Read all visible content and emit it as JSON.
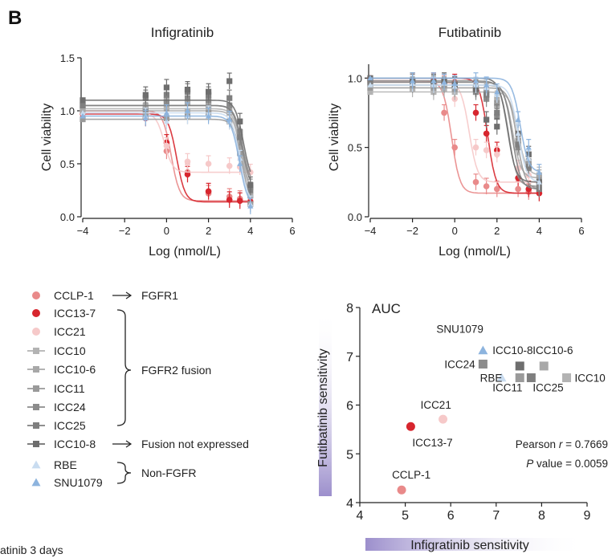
{
  "panel_label": "B",
  "footer_text": "atinib 3 days",
  "colors": {
    "CCLP-1": "#e98a8a",
    "ICC13-7": "#d7262e",
    "ICC21": "#f6c9c9",
    "ICC10": "#b3b3b3",
    "ICC10-6": "#a8a8a8",
    "ICC11": "#9a9a9a",
    "ICC24": "#8c8c8c",
    "ICC25": "#7f7f7f",
    "ICC10-8": "#6e6e6e",
    "RBE": "#c9dcf0",
    "SNU1079": "#8db4de",
    "wedge": "#9c8fcc"
  },
  "legend": {
    "items": [
      {
        "name": "CCLP-1",
        "marker": "circle"
      },
      {
        "name": "ICC13-7",
        "marker": "circle"
      },
      {
        "name": "ICC21",
        "marker": "circle"
      },
      {
        "name": "ICC10",
        "marker": "square-line"
      },
      {
        "name": "ICC10-6",
        "marker": "square-line"
      },
      {
        "name": "ICC11",
        "marker": "square-line"
      },
      {
        "name": "ICC24",
        "marker": "square-line"
      },
      {
        "name": "ICC25",
        "marker": "square-line"
      },
      {
        "name": "ICC10-8",
        "marker": "square-line"
      },
      {
        "name": "RBE",
        "marker": "triangle"
      },
      {
        "name": "SNU1079",
        "marker": "triangle"
      }
    ],
    "groups": {
      "fgfr1": "FGFR1",
      "fusion": "FGFR2 fusion",
      "not_expressed": "Fusion not expressed",
      "non_fgfr": "Non-FGFR"
    }
  },
  "chart_data": [
    {
      "type": "line",
      "title": "Infigratinib",
      "xlabel": "Log (nmol/L)",
      "ylabel": "Cell viability",
      "xlim": [
        -4,
        6
      ],
      "ylim": [
        0,
        1.5
      ],
      "xticks": [
        "−4",
        "−2",
        "0",
        "2",
        "4",
        "6"
      ],
      "yticks": [
        "0.0",
        "0.5",
        "1.0",
        "1.5"
      ],
      "x": [
        -4,
        -1,
        0,
        1,
        2,
        3,
        3.5,
        4
      ],
      "series": [
        {
          "name": "CCLP-1",
          "values": [
            1.0,
            0.97,
            0.62,
            0.42,
            0.22,
            0.19,
            0.17,
            0.15
          ]
        },
        {
          "name": "ICC13-7",
          "values": [
            0.97,
            0.93,
            0.7,
            0.4,
            0.24,
            0.16,
            0.15,
            0.14
          ]
        },
        {
          "name": "ICC21",
          "values": [
            0.98,
            0.95,
            0.67,
            0.52,
            0.5,
            0.48,
            0.47,
            0.42
          ]
        },
        {
          "name": "ICC10",
          "values": [
            1.02,
            1.05,
            1.02,
            1.0,
            1.0,
            0.98,
            0.7,
            0.2
          ]
        },
        {
          "name": "ICC10-6",
          "values": [
            1.0,
            1.02,
            1.1,
            1.08,
            1.05,
            1.0,
            0.65,
            0.2
          ]
        },
        {
          "name": "ICC11",
          "values": [
            0.92,
            0.95,
            0.93,
            0.95,
            0.98,
            0.9,
            0.6,
            0.12
          ]
        },
        {
          "name": "ICC24",
          "values": [
            1.05,
            1.0,
            1.08,
            1.12,
            1.1,
            1.05,
            0.8,
            0.28
          ]
        },
        {
          "name": "ICC25",
          "values": [
            1.05,
            1.12,
            1.15,
            1.18,
            1.15,
            1.12,
            0.75,
            0.25
          ]
        },
        {
          "name": "ICC10-8",
          "values": [
            1.1,
            1.15,
            1.22,
            1.2,
            1.18,
            1.28,
            0.9,
            0.3
          ]
        },
        {
          "name": "RBE",
          "values": [
            0.98,
            0.95,
            0.9,
            0.95,
            0.97,
            0.9,
            0.55,
            0.12
          ]
        },
        {
          "name": "SNU1079",
          "values": [
            0.95,
            0.93,
            0.98,
            1.0,
            0.95,
            0.92,
            0.5,
            0.1
          ]
        }
      ]
    },
    {
      "type": "line",
      "title": "Futibatinib",
      "xlabel": "Log (nmol/L)",
      "ylabel": "Cell viability",
      "xlim": [
        -4,
        6
      ],
      "ylim": [
        0,
        1.1
      ],
      "xticks": [
        "−4",
        "−2",
        "0",
        "2",
        "4",
        "6"
      ],
      "yticks": [
        "0.0",
        "0.5",
        "1.0"
      ],
      "x": [
        -4,
        -2,
        -1,
        -0.5,
        0,
        1,
        1.5,
        2,
        3,
        3.5,
        4
      ],
      "series": [
        {
          "name": "CCLP-1",
          "values": [
            0.98,
            0.97,
            0.95,
            0.75,
            0.5,
            0.25,
            0.22,
            0.2,
            0.2,
            0.18,
            0.17
          ]
        },
        {
          "name": "ICC13-7",
          "values": [
            1.0,
            0.98,
            0.98,
            0.96,
            0.97,
            0.75,
            0.6,
            0.48,
            0.28,
            0.2,
            0.17
          ]
        },
        {
          "name": "ICC21",
          "values": [
            0.97,
            0.98,
            0.95,
            0.96,
            0.85,
            0.5,
            0.48,
            0.45,
            0.35,
            0.3,
            0.25
          ]
        },
        {
          "name": "ICC10",
          "values": [
            0.9,
            0.92,
            0.9,
            0.92,
            0.9,
            0.9,
            0.88,
            0.85,
            0.6,
            0.45,
            0.3
          ]
        },
        {
          "name": "ICC10-6",
          "values": [
            0.95,
            0.95,
            0.97,
            0.95,
            0.95,
            0.92,
            0.88,
            0.8,
            0.55,
            0.4,
            0.28
          ]
        },
        {
          "name": "ICC11",
          "values": [
            0.93,
            0.95,
            0.93,
            0.95,
            0.92,
            0.92,
            0.9,
            0.82,
            0.55,
            0.38,
            0.2
          ]
        },
        {
          "name": "ICC24",
          "values": [
            0.98,
            0.97,
            0.95,
            0.97,
            0.95,
            0.9,
            0.85,
            0.72,
            0.5,
            0.35,
            0.22
          ]
        },
        {
          "name": "ICC25",
          "values": [
            0.97,
            0.98,
            0.96,
            0.97,
            0.95,
            0.93,
            0.88,
            0.75,
            0.52,
            0.36,
            0.2
          ]
        },
        {
          "name": "ICC10-8",
          "values": [
            1.0,
            0.98,
            0.97,
            0.98,
            0.95,
            0.92,
            0.7,
            0.65,
            0.6,
            0.45,
            0.25
          ]
        },
        {
          "name": "RBE",
          "values": [
            0.95,
            0.96,
            0.95,
            0.97,
            0.94,
            0.95,
            0.93,
            0.88,
            0.6,
            0.42,
            0.25
          ]
        },
        {
          "name": "SNU1079",
          "values": [
            1.0,
            0.98,
            0.98,
            0.97,
            0.96,
            0.98,
            0.95,
            0.9,
            0.7,
            0.5,
            0.32
          ]
        }
      ]
    },
    {
      "type": "scatter",
      "title": "AUC",
      "xlabel": "Infigratinib sensitivity",
      "ylabel": "Futibatinib sensitivity",
      "xlim": [
        4,
        9
      ],
      "ylim": [
        4,
        8
      ],
      "xticks": [
        "4",
        "5",
        "6",
        "7",
        "8",
        "9"
      ],
      "yticks": [
        "4",
        "5",
        "6",
        "7",
        "8"
      ],
      "points": [
        {
          "name": "CCLP-1",
          "x": 4.92,
          "y": 4.26
        },
        {
          "name": "ICC13-7",
          "x": 5.12,
          "y": 5.56
        },
        {
          "name": "ICC21",
          "x": 5.83,
          "y": 5.71
        },
        {
          "name": "SNU1079",
          "x": 6.71,
          "y": 7.12
        },
        {
          "name": "ICC24",
          "x": 6.71,
          "y": 6.84
        },
        {
          "name": "RBE",
          "x": 7.12,
          "y": 6.56
        },
        {
          "name": "ICC10-8",
          "x": 7.52,
          "y": 6.8
        },
        {
          "name": "ICC11",
          "x": 7.52,
          "y": 6.56
        },
        {
          "name": "ICC25",
          "x": 7.77,
          "y": 6.56
        },
        {
          "name": "ICC10-6",
          "x": 8.05,
          "y": 6.8
        },
        {
          "name": "ICC10",
          "x": 8.55,
          "y": 6.56
        }
      ],
      "stats": {
        "pearson_label": "Pearson ",
        "r_symbol": "r",
        "r_value": " = 0.7669",
        "p_symbol": "P",
        "p_value": " value = 0.0059"
      }
    }
  ]
}
